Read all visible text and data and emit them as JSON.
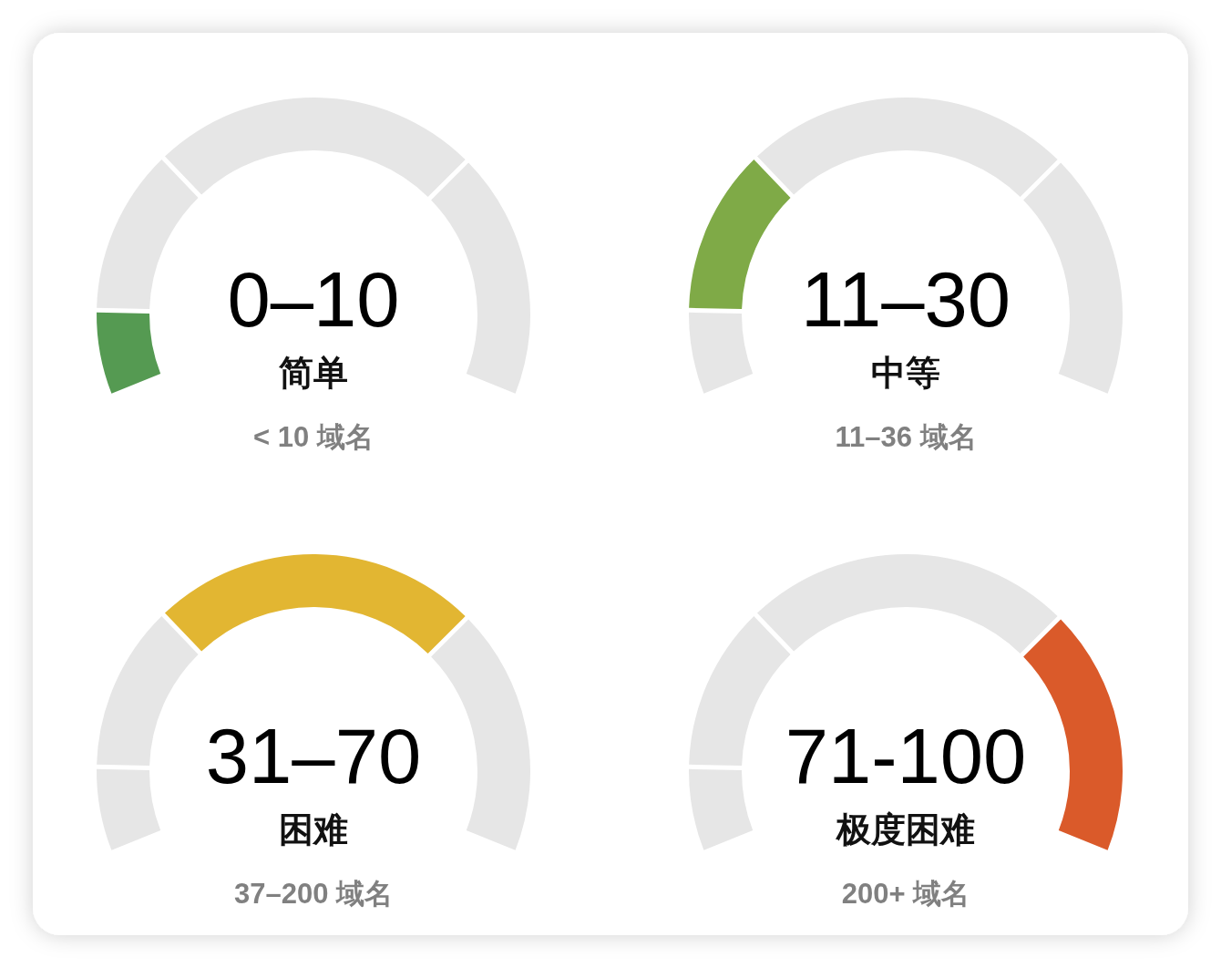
{
  "chart_data": [
    {
      "type": "donut",
      "title": "0–10",
      "subtitle": "简单",
      "annotations": [
        "< 10 域名"
      ],
      "categories": [
        null,
        null,
        null,
        null
      ],
      "values": [
        10,
        20,
        40,
        30
      ],
      "colors": [
        "#559a52",
        "#e6e6e6",
        "#e6e6e6",
        "#e6e6e6"
      ]
    },
    {
      "type": "donut",
      "title": "11–30",
      "subtitle": "中等",
      "annotations": [
        "11–36 域名"
      ],
      "categories": [
        null,
        null,
        null,
        null
      ],
      "values": [
        10,
        20,
        40,
        30
      ],
      "colors": [
        "#e6e6e6",
        "#7faa47",
        "#e6e6e6",
        "#e6e6e6"
      ]
    },
    {
      "type": "donut",
      "title": "31–70",
      "subtitle": "困难",
      "annotations": [
        "37–200 域名"
      ],
      "categories": [
        null,
        null,
        null,
        null
      ],
      "values": [
        10,
        20,
        40,
        30
      ],
      "colors": [
        "#e6e6e6",
        "#e6e6e6",
        "#e2b632",
        "#e6e6e6"
      ]
    },
    {
      "type": "donut",
      "title": "71-100",
      "subtitle": "极度困难",
      "annotations": [
        "200+ 域名"
      ],
      "categories": [
        null,
        null,
        null,
        null
      ],
      "values": [
        10,
        20,
        40,
        30
      ],
      "colors": [
        "#e6e6e6",
        "#e6e6e6",
        "#e6e6e6",
        "#da5a2a"
      ]
    }
  ]
}
